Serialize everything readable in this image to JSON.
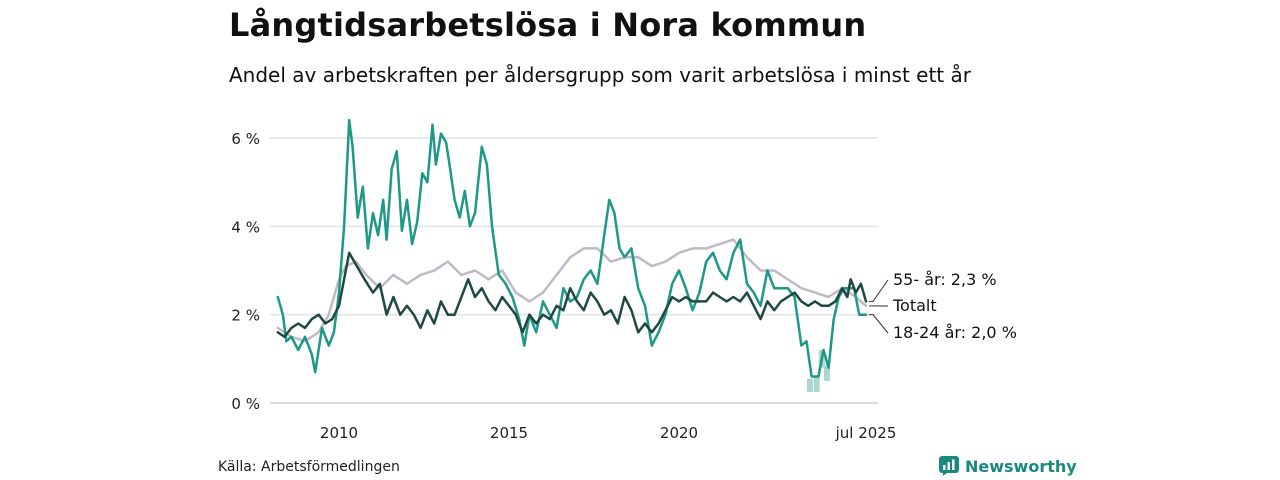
{
  "title": "Långtidsarbetslösa i Nora kommun",
  "subtitle": "Andel av arbetskraften per åldersgrupp som varit arbetslösa i minst ett år",
  "source": "Källa: Arbetsförmedlingen",
  "logo": {
    "text": "Newsworthy",
    "icon": "newsworthy-chart-icon",
    "color": "#1a8a7e"
  },
  "chart_data": {
    "type": "line",
    "ylim": [
      0,
      6.5
    ],
    "yticks": [
      0,
      2,
      4,
      6
    ],
    "ytick_labels": [
      "0 %",
      "2 %",
      "4 %",
      "6 %"
    ],
    "xlim": [
      2008.2,
      2025.6
    ],
    "xticks": [
      2010,
      2015,
      2020,
      2025.5
    ],
    "xtick_labels": [
      "2010",
      "2015",
      "2020",
      "jul 2025"
    ],
    "grid": true,
    "legend": "direct labels at right end of lines",
    "series": [
      {
        "name": "Totalt",
        "label": "Totalt",
        "color": "#c0bac8",
        "width": 2.5,
        "points": [
          [
            2008.2,
            1.7
          ],
          [
            2008.6,
            1.5
          ],
          [
            2009.0,
            1.4
          ],
          [
            2009.4,
            1.6
          ],
          [
            2009.7,
            2.0
          ],
          [
            2010.0,
            2.8
          ],
          [
            2010.2,
            3.1
          ],
          [
            2010.5,
            3.2
          ],
          [
            2010.8,
            2.9
          ],
          [
            2011.2,
            2.6
          ],
          [
            2011.6,
            2.9
          ],
          [
            2012.0,
            2.7
          ],
          [
            2012.4,
            2.9
          ],
          [
            2012.8,
            3.0
          ],
          [
            2013.2,
            3.2
          ],
          [
            2013.6,
            2.9
          ],
          [
            2014.0,
            3.0
          ],
          [
            2014.4,
            2.8
          ],
          [
            2014.8,
            3.0
          ],
          [
            2015.2,
            2.5
          ],
          [
            2015.6,
            2.3
          ],
          [
            2016.0,
            2.5
          ],
          [
            2016.4,
            2.9
          ],
          [
            2016.8,
            3.3
          ],
          [
            2017.2,
            3.5
          ],
          [
            2017.6,
            3.5
          ],
          [
            2018.0,
            3.2
          ],
          [
            2018.4,
            3.3
          ],
          [
            2018.8,
            3.3
          ],
          [
            2019.2,
            3.1
          ],
          [
            2019.6,
            3.2
          ],
          [
            2020.0,
            3.4
          ],
          [
            2020.4,
            3.5
          ],
          [
            2020.8,
            3.5
          ],
          [
            2021.2,
            3.6
          ],
          [
            2021.6,
            3.7
          ],
          [
            2022.0,
            3.3
          ],
          [
            2022.4,
            3.0
          ],
          [
            2022.8,
            3.0
          ],
          [
            2023.2,
            2.8
          ],
          [
            2023.6,
            2.6
          ],
          [
            2024.0,
            2.5
          ],
          [
            2024.4,
            2.4
          ],
          [
            2024.8,
            2.6
          ],
          [
            2025.2,
            2.4
          ],
          [
            2025.5,
            2.2
          ]
        ]
      },
      {
        "name": "18-24 år",
        "label": "18-24 år: 2,0 %",
        "color": "#1e9887",
        "width": 2.5,
        "points": [
          [
            2008.2,
            2.4
          ],
          [
            2008.35,
            2.0
          ],
          [
            2008.45,
            1.4
          ],
          [
            2008.6,
            1.5
          ],
          [
            2008.8,
            1.2
          ],
          [
            2009.0,
            1.5
          ],
          [
            2009.2,
            1.1
          ],
          [
            2009.3,
            0.7
          ],
          [
            2009.5,
            1.7
          ],
          [
            2009.7,
            1.3
          ],
          [
            2009.85,
            1.6
          ],
          [
            2010.0,
            2.5
          ],
          [
            2010.15,
            4.0
          ],
          [
            2010.3,
            6.4
          ],
          [
            2010.4,
            5.8
          ],
          [
            2010.55,
            4.2
          ],
          [
            2010.7,
            4.9
          ],
          [
            2010.85,
            3.5
          ],
          [
            2011.0,
            4.3
          ],
          [
            2011.15,
            3.8
          ],
          [
            2011.3,
            4.6
          ],
          [
            2011.4,
            3.7
          ],
          [
            2011.55,
            5.3
          ],
          [
            2011.7,
            5.7
          ],
          [
            2011.85,
            3.9
          ],
          [
            2012.0,
            4.6
          ],
          [
            2012.15,
            3.6
          ],
          [
            2012.3,
            4.1
          ],
          [
            2012.45,
            5.2
          ],
          [
            2012.6,
            5.0
          ],
          [
            2012.75,
            6.3
          ],
          [
            2012.85,
            5.4
          ],
          [
            2013.0,
            6.1
          ],
          [
            2013.15,
            5.9
          ],
          [
            2013.25,
            5.4
          ],
          [
            2013.4,
            4.6
          ],
          [
            2013.55,
            4.2
          ],
          [
            2013.7,
            4.8
          ],
          [
            2013.85,
            4.0
          ],
          [
            2014.0,
            4.3
          ],
          [
            2014.2,
            5.8
          ],
          [
            2014.35,
            5.4
          ],
          [
            2014.5,
            4.0
          ],
          [
            2014.7,
            2.9
          ],
          [
            2014.9,
            2.7
          ],
          [
            2015.1,
            2.4
          ],
          [
            2015.3,
            1.9
          ],
          [
            2015.45,
            1.3
          ],
          [
            2015.6,
            2.0
          ],
          [
            2015.8,
            1.6
          ],
          [
            2016.0,
            2.3
          ],
          [
            2016.2,
            2.0
          ],
          [
            2016.4,
            1.7
          ],
          [
            2016.6,
            2.6
          ],
          [
            2016.8,
            2.3
          ],
          [
            2017.0,
            2.4
          ],
          [
            2017.2,
            2.8
          ],
          [
            2017.4,
            3.0
          ],
          [
            2017.6,
            2.7
          ],
          [
            2017.8,
            3.8
          ],
          [
            2017.95,
            4.6
          ],
          [
            2018.1,
            4.3
          ],
          [
            2018.25,
            3.5
          ],
          [
            2018.4,
            3.3
          ],
          [
            2018.6,
            3.5
          ],
          [
            2018.8,
            2.6
          ],
          [
            2019.0,
            2.2
          ],
          [
            2019.2,
            1.3
          ],
          [
            2019.4,
            1.6
          ],
          [
            2019.6,
            2.0
          ],
          [
            2019.8,
            2.7
          ],
          [
            2020.0,
            3.0
          ],
          [
            2020.2,
            2.6
          ],
          [
            2020.4,
            2.1
          ],
          [
            2020.6,
            2.5
          ],
          [
            2020.8,
            3.2
          ],
          [
            2021.0,
            3.4
          ],
          [
            2021.2,
            3.0
          ],
          [
            2021.4,
            2.8
          ],
          [
            2021.6,
            3.4
          ],
          [
            2021.8,
            3.7
          ],
          [
            2022.0,
            2.7
          ],
          [
            2022.2,
            2.5
          ],
          [
            2022.4,
            2.2
          ],
          [
            2022.6,
            3.0
          ],
          [
            2022.8,
            2.6
          ],
          [
            2023.0,
            2.6
          ],
          [
            2023.2,
            2.6
          ],
          [
            2023.4,
            2.4
          ],
          [
            2023.6,
            1.3
          ],
          [
            2023.75,
            1.4
          ],
          [
            2023.9,
            0.6
          ],
          [
            2024.1,
            0.6
          ],
          [
            2024.25,
            1.2
          ],
          [
            2024.4,
            0.8
          ],
          [
            2024.55,
            1.9
          ],
          [
            2024.7,
            2.4
          ],
          [
            2024.85,
            2.6
          ],
          [
            2025.0,
            2.6
          ],
          [
            2025.15,
            2.6
          ],
          [
            2025.3,
            2.0
          ],
          [
            2025.5,
            2.0
          ]
        ]
      },
      {
        "name": "55- år",
        "label": "55- år: 2,3 %",
        "color": "#1f4a44",
        "width": 2.5,
        "points": [
          [
            2008.2,
            1.6
          ],
          [
            2008.4,
            1.5
          ],
          [
            2008.6,
            1.7
          ],
          [
            2008.8,
            1.8
          ],
          [
            2009.0,
            1.7
          ],
          [
            2009.2,
            1.9
          ],
          [
            2009.4,
            2.0
          ],
          [
            2009.6,
            1.8
          ],
          [
            2009.8,
            1.9
          ],
          [
            2010.0,
            2.2
          ],
          [
            2010.15,
            2.8
          ],
          [
            2010.3,
            3.4
          ],
          [
            2010.45,
            3.2
          ],
          [
            2010.6,
            3.0
          ],
          [
            2010.75,
            2.8
          ],
          [
            2011.0,
            2.5
          ],
          [
            2011.2,
            2.7
          ],
          [
            2011.4,
            2.0
          ],
          [
            2011.6,
            2.4
          ],
          [
            2011.8,
            2.0
          ],
          [
            2012.0,
            2.2
          ],
          [
            2012.2,
            2.0
          ],
          [
            2012.4,
            1.7
          ],
          [
            2012.6,
            2.1
          ],
          [
            2012.8,
            1.8
          ],
          [
            2013.0,
            2.3
          ],
          [
            2013.2,
            2.0
          ],
          [
            2013.4,
            2.0
          ],
          [
            2013.6,
            2.4
          ],
          [
            2013.8,
            2.8
          ],
          [
            2014.0,
            2.4
          ],
          [
            2014.2,
            2.6
          ],
          [
            2014.4,
            2.3
          ],
          [
            2014.6,
            2.1
          ],
          [
            2014.8,
            2.4
          ],
          [
            2015.0,
            2.2
          ],
          [
            2015.2,
            2.0
          ],
          [
            2015.4,
            1.6
          ],
          [
            2015.6,
            2.0
          ],
          [
            2015.8,
            1.8
          ],
          [
            2016.0,
            2.0
          ],
          [
            2016.2,
            1.9
          ],
          [
            2016.4,
            2.2
          ],
          [
            2016.6,
            2.1
          ],
          [
            2016.8,
            2.6
          ],
          [
            2017.0,
            2.3
          ],
          [
            2017.2,
            2.1
          ],
          [
            2017.4,
            2.5
          ],
          [
            2017.6,
            2.3
          ],
          [
            2017.8,
            2.0
          ],
          [
            2018.0,
            2.1
          ],
          [
            2018.2,
            1.8
          ],
          [
            2018.4,
            2.4
          ],
          [
            2018.6,
            2.1
          ],
          [
            2018.8,
            1.6
          ],
          [
            2019.0,
            1.8
          ],
          [
            2019.2,
            1.6
          ],
          [
            2019.4,
            1.8
          ],
          [
            2019.6,
            2.1
          ],
          [
            2019.8,
            2.4
          ],
          [
            2020.0,
            2.3
          ],
          [
            2020.2,
            2.4
          ],
          [
            2020.4,
            2.3
          ],
          [
            2020.6,
            2.3
          ],
          [
            2020.8,
            2.3
          ],
          [
            2021.0,
            2.5
          ],
          [
            2021.2,
            2.4
          ],
          [
            2021.4,
            2.3
          ],
          [
            2021.6,
            2.4
          ],
          [
            2021.8,
            2.3
          ],
          [
            2022.0,
            2.5
          ],
          [
            2022.2,
            2.2
          ],
          [
            2022.4,
            1.9
          ],
          [
            2022.6,
            2.3
          ],
          [
            2022.8,
            2.1
          ],
          [
            2023.0,
            2.3
          ],
          [
            2023.2,
            2.4
          ],
          [
            2023.4,
            2.5
          ],
          [
            2023.6,
            2.3
          ],
          [
            2023.8,
            2.2
          ],
          [
            2024.0,
            2.3
          ],
          [
            2024.2,
            2.2
          ],
          [
            2024.4,
            2.2
          ],
          [
            2024.6,
            2.3
          ],
          [
            2024.8,
            2.6
          ],
          [
            2024.95,
            2.4
          ],
          [
            2025.05,
            2.8
          ],
          [
            2025.2,
            2.5
          ],
          [
            2025.35,
            2.7
          ],
          [
            2025.5,
            2.3
          ]
        ]
      }
    ],
    "ci_band": {
      "series": "18-24 år",
      "color": "#a9d8cf",
      "points": [
        [
          2023.85,
          0.25,
          0.55
        ],
        [
          2024.05,
          0.25,
          0.6
        ],
        [
          2024.2,
          0.8,
          1.2
        ],
        [
          2024.35,
          0.5,
          0.85
        ]
      ]
    }
  }
}
